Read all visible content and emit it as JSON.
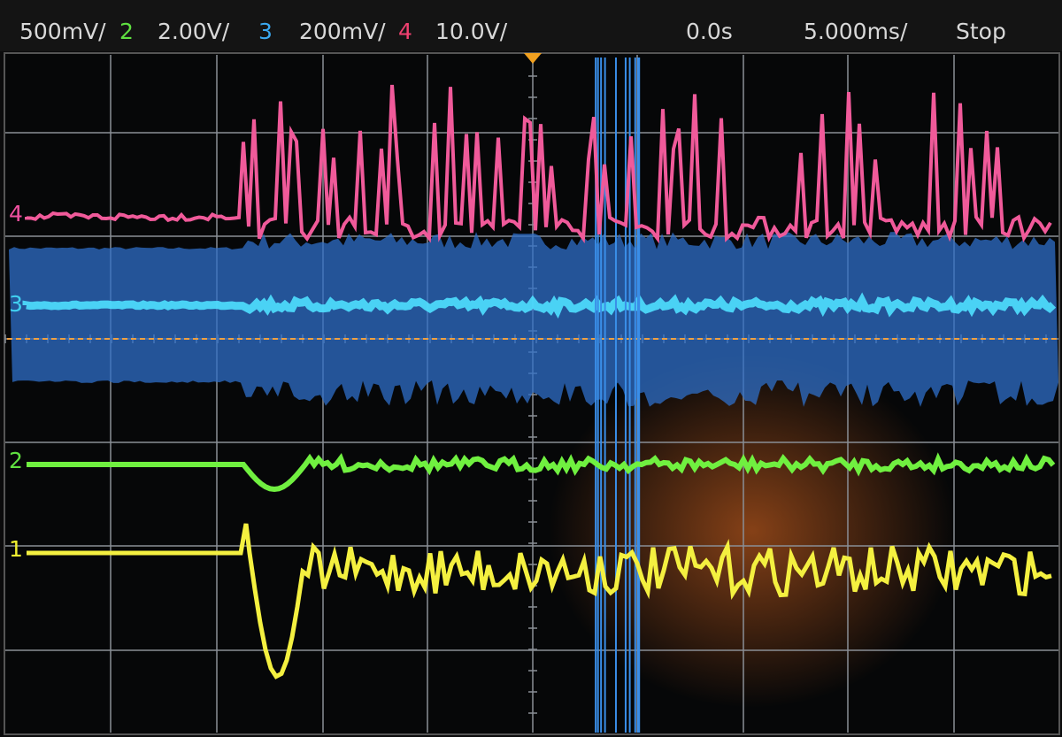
{
  "header": {
    "ch1_scale": "500mV/",
    "ch2_number": "2",
    "ch2_scale": "2.00V/",
    "ch3_number": "3",
    "ch3_scale": "200mV/",
    "ch4_number": "4",
    "ch4_scale": "10.0V/",
    "time_offset": "0.0s",
    "time_scale": "5.000ms/",
    "status": "Stop"
  },
  "channel_markers": [
    "4",
    "3",
    "2",
    "1"
  ]
}
